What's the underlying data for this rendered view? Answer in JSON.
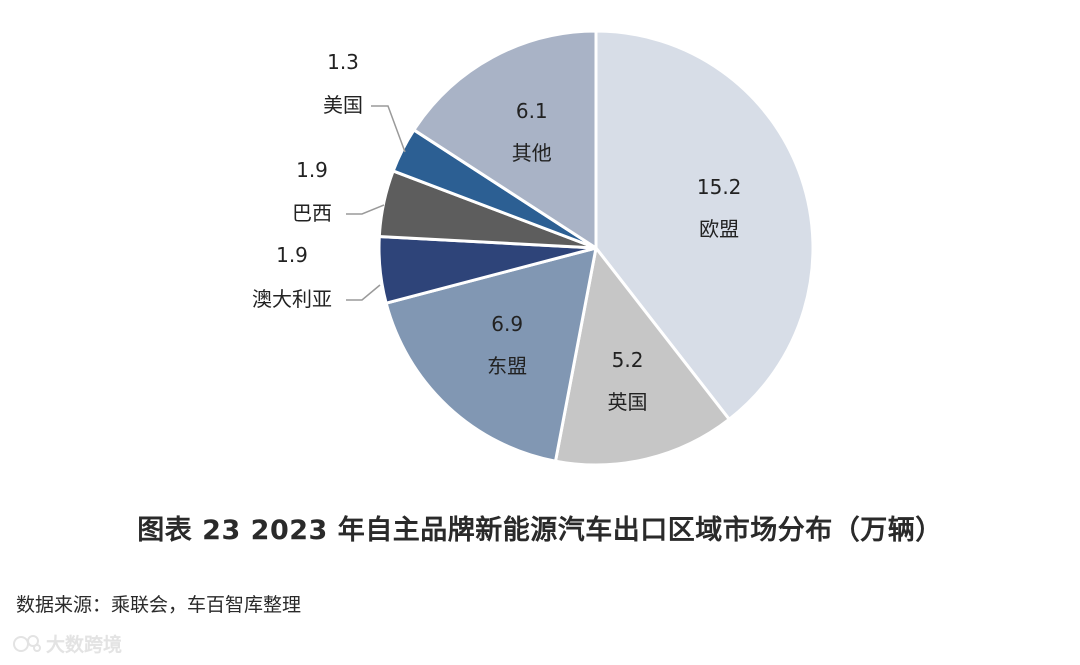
{
  "chart_data": {
    "type": "pie",
    "unit": "万辆",
    "slices": [
      {
        "label": "欧盟",
        "value": 15.2,
        "color": "#d7dde7"
      },
      {
        "label": "英国",
        "value": 5.2,
        "color": "#c6c6c6"
      },
      {
        "label": "东盟",
        "value": 6.9,
        "color": "#8197b3"
      },
      {
        "label": "澳大利亚",
        "value": 1.9,
        "color": "#2e4479"
      },
      {
        "label": "巴西",
        "value": 1.9,
        "color": "#5d5d5d"
      },
      {
        "label": "美国",
        "value": 1.3,
        "color": "#2c5f93"
      },
      {
        "label": "其他",
        "value": 6.1,
        "color": "#a9b3c6"
      }
    ]
  },
  "caption": "图表 23 2023 年自主品牌新能源汽车出口区域市场分布（万辆）",
  "source": "数据来源：乘联会，车百智库整理",
  "watermark": "大数跨境"
}
